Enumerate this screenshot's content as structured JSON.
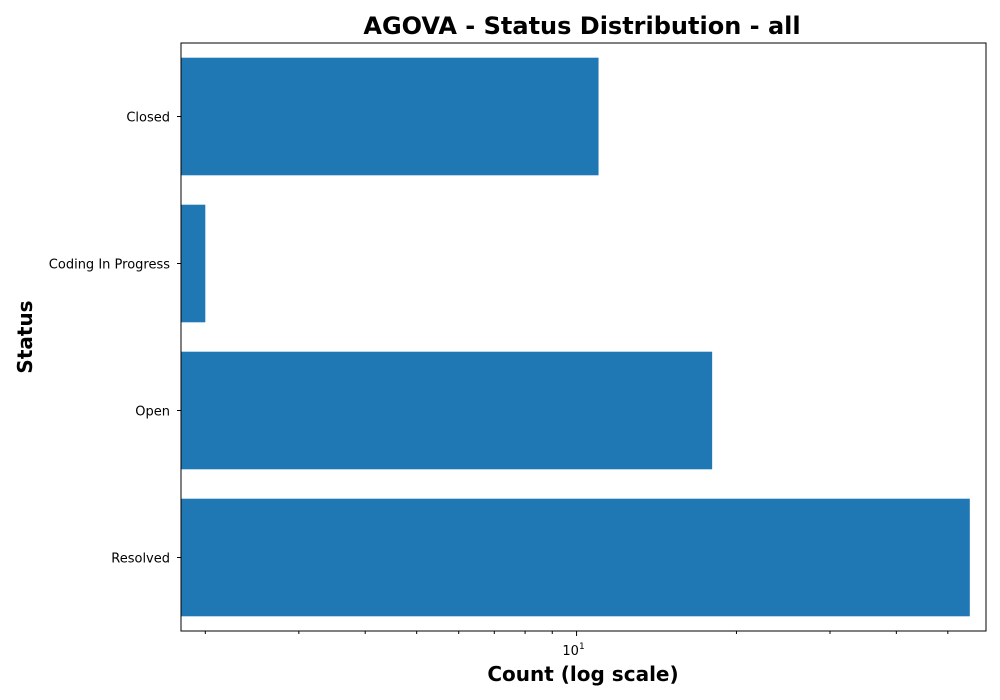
{
  "chart_data": {
    "type": "bar",
    "orientation": "horizontal",
    "title": "AGOVA - Status Distribution - all",
    "xlabel": "Count (log scale)",
    "ylabel": "Status",
    "x_scale": "log",
    "xlim": [
      1.8,
      59
    ],
    "x_major_ticks": [
      {
        "value": 10,
        "label": "10",
        "exponent": "1"
      }
    ],
    "x_minor_ticks": [
      2,
      3,
      4,
      5,
      6,
      7,
      8,
      9,
      20,
      30,
      40,
      50
    ],
    "categories": [
      "Closed",
      "Coding In Progress",
      "Open",
      "Resolved"
    ],
    "values": [
      11,
      2,
      18,
      55
    ],
    "color": "#1f77b4",
    "grid": false,
    "legend": "none"
  }
}
